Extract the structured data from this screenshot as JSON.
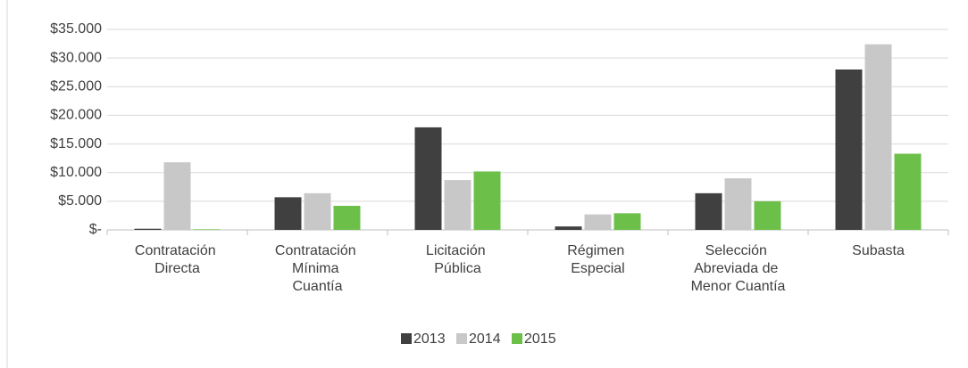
{
  "chart_data": {
    "type": "bar",
    "categories": [
      "Contratación Directa",
      "Contratación Mínima Cuantía",
      "Licitación Pública",
      "Régimen Especial",
      "Selección Abreviada de Menor Cuantía",
      "Subasta"
    ],
    "series": [
      {
        "name": "2013",
        "color": "#404040",
        "values": [
          200,
          5700,
          17900,
          600,
          6400,
          28000
        ]
      },
      {
        "name": "2014",
        "color": "#c8c8c8",
        "values": [
          11800,
          6400,
          8700,
          2700,
          9000,
          32400
        ]
      },
      {
        "name": "2015",
        "color": "#6cc04a",
        "values": [
          100,
          4200,
          10200,
          2900,
          5000,
          13300
        ]
      }
    ],
    "ylim": [
      0,
      35000
    ],
    "yticks": [
      {
        "value": 0,
        "label": "$-"
      },
      {
        "value": 5000,
        "label": "$5.000"
      },
      {
        "value": 10000,
        "label": "$10.000"
      },
      {
        "value": 15000,
        "label": "$15.000"
      },
      {
        "value": 20000,
        "label": "$20.000"
      },
      {
        "value": 25000,
        "label": "$25.000"
      },
      {
        "value": 30000,
        "label": "$30.000"
      },
      {
        "value": 35000,
        "label": "$35.000"
      }
    ],
    "grid": true,
    "legend": "bottom"
  }
}
